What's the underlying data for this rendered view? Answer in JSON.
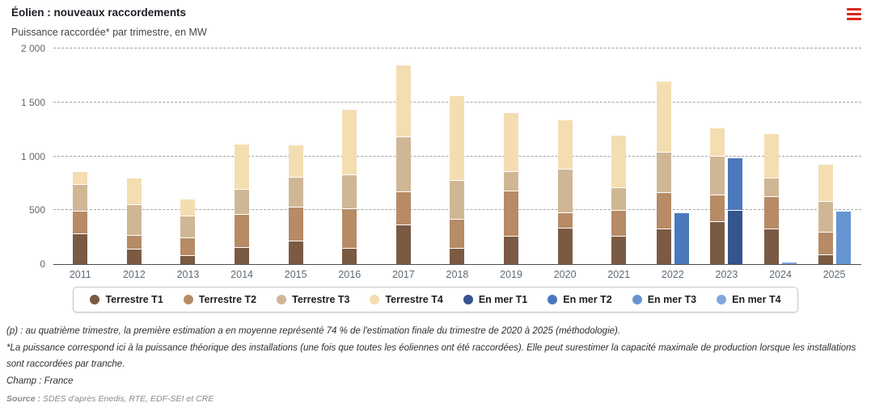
{
  "header": {
    "title": "Éolien : nouveaux raccordements",
    "subtitle": "Puissance raccordée* par trimestre, en MW",
    "menu_icon": "hamburger-menu-icon",
    "menu_color": "#d9261c"
  },
  "chart_data": {
    "type": "bar",
    "stacked": true,
    "title": "Éolien : nouveaux raccordements",
    "subtitle": "Puissance raccordée* par trimestre, en MW",
    "unit": "MW",
    "categories": [
      "2011",
      "2012",
      "2013",
      "2014",
      "2015",
      "2016",
      "2017",
      "2018",
      "2019",
      "2020",
      "2021",
      "2022",
      "2023",
      "2024",
      "2025"
    ],
    "ylim": [
      0,
      2000
    ],
    "ytick_values": [
      0,
      500,
      1000,
      1500,
      2000
    ],
    "ytick_labels": [
      "0",
      "500",
      "1 000",
      "1 500",
      "2 000"
    ],
    "grid": "horizontal-dashed",
    "legend_position": "bottom",
    "groups": {
      "terrestre": [
        0,
        1,
        2,
        3
      ],
      "en_mer": [
        4,
        5,
        6,
        7
      ]
    },
    "series": [
      {
        "name": "Terrestre T1",
        "color": "#7b5a43",
        "values": [
          285,
          140,
          80,
          155,
          215,
          150,
          365,
          150,
          260,
          340,
          260,
          330,
          395,
          330,
          90
        ]
      },
      {
        "name": "Terrestre T2",
        "color": "#b68b65",
        "values": [
          210,
          130,
          165,
          310,
          315,
          365,
          310,
          270,
          420,
          140,
          240,
          335,
          250,
          300,
          210
        ]
      },
      {
        "name": "Terrestre T3",
        "color": "#cfb795",
        "values": [
          250,
          285,
          205,
          230,
          280,
          320,
          510,
          360,
          180,
          405,
          210,
          380,
          360,
          170,
          285
        ]
      },
      {
        "name": "Terrestre T4",
        "color": "#f4ddb1",
        "values": [
          120,
          245,
          155,
          425,
          300,
          605,
          665,
          785,
          545,
          455,
          490,
          655,
          260,
          415,
          345
        ]
      },
      {
        "name": "En mer T1",
        "color": "#36548e",
        "values": [
          0,
          0,
          0,
          0,
          0,
          0,
          0,
          0,
          0,
          0,
          0,
          0,
          500,
          0,
          0
        ]
      },
      {
        "name": "En mer T2",
        "color": "#4b79bc",
        "values": [
          0,
          0,
          0,
          0,
          0,
          0,
          0,
          0,
          0,
          0,
          0,
          480,
          490,
          0,
          0
        ]
      },
      {
        "name": "En mer T3",
        "color": "#6795d1",
        "values": [
          0,
          0,
          0,
          0,
          0,
          0,
          0,
          0,
          0,
          0,
          0,
          0,
          0,
          0,
          495
        ]
      },
      {
        "name": "En mer T4",
        "color": "#80a8dd",
        "values": [
          0,
          0,
          0,
          0,
          0,
          0,
          0,
          0,
          0,
          0,
          0,
          0,
          0,
          25,
          0
        ]
      }
    ]
  },
  "footnotes": [
    "(p) : au quatrième trimestre, la première estimation a en moyenne représenté 74 % de l'estimation finale du trimestre de 2020 à 2025 (méthodologie).",
    "*La puissance correspond ici à la puissance théorique des installations (une fois que toutes les éoliennes ont été raccordées). Elle peut surestimer la capacité maximale de production lorsque les installations sont raccordées par tranche.",
    "Champ : France"
  ],
  "source": {
    "label": "Source :",
    "text": "SDES d'après Enedis, RTE, EDF-SEI et CRE"
  }
}
